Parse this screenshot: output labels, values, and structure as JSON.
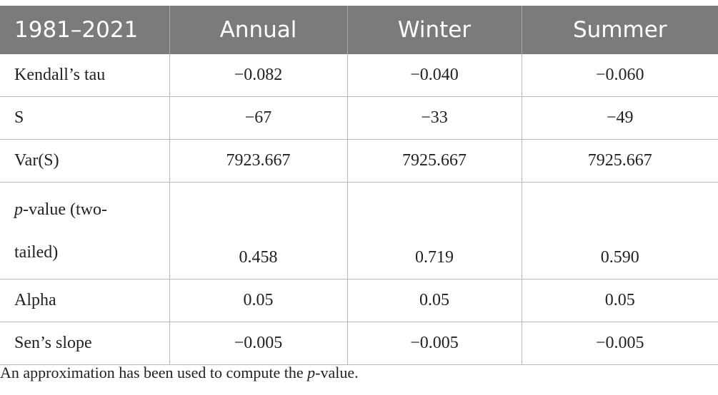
{
  "table": {
    "header": [
      "1981–2021",
      "Annual",
      "Winter",
      "Summer"
    ],
    "rows": [
      {
        "label": "Kendall’s tau",
        "values": [
          "−0.082",
          "−0.040",
          "−0.060"
        ]
      },
      {
        "label": "S",
        "values": [
          "−67",
          "−33",
          "−49"
        ]
      },
      {
        "label": "Var(S)",
        "values": [
          "7923.667",
          "7925.667",
          "7925.667"
        ]
      },
      {
        "label_italic": "p",
        "label_rest": "-value (two-",
        "label_line2": "tailed)",
        "values": [
          "0.458",
          "0.719",
          "0.590"
        ]
      },
      {
        "label": "Alpha",
        "values": [
          "0.05",
          "0.05",
          "0.05"
        ]
      },
      {
        "label": "Sen’s slope",
        "values": [
          "−0.005",
          "−0.005",
          "−0.005"
        ]
      }
    ]
  },
  "footnote": {
    "before": "An approximation has been used to compute the ",
    "italic": "p",
    "after": "-value."
  },
  "colors": {
    "header_bg": "#7b7b7b",
    "header_text": "#ffffff",
    "grid": "#b9b9b9"
  }
}
